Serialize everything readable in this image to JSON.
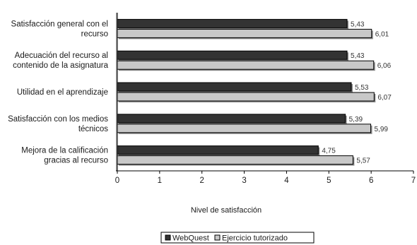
{
  "chart_data": {
    "type": "bar",
    "orientation": "horizontal",
    "categories": [
      [
        "Satisfacción general con el",
        "recurso"
      ],
      [
        "Adecuación del recurso al",
        "contenido de la asignatura"
      ],
      [
        "Utilidad en el aprendizaje"
      ],
      [
        "Satisfacción con los medios",
        "técnicos"
      ],
      [
        "Mejora de la calificación",
        "gracias al recurso"
      ]
    ],
    "series": [
      {
        "name": "WebQuest",
        "values": [
          5.43,
          5.43,
          5.53,
          5.39,
          4.75
        ],
        "labels": [
          "5,43",
          "5,43",
          "5,53",
          "5,39",
          "4,75"
        ],
        "color": "#333333"
      },
      {
        "name": "Ejercicio tutorizado",
        "values": [
          6.01,
          6.06,
          6.07,
          5.99,
          5.57
        ],
        "labels": [
          "6,01",
          "6,06",
          "6,07",
          "5,99",
          "5,57"
        ],
        "color": "#c8c8c8"
      }
    ],
    "xlabel": "Nivel de satisfacción",
    "xlim": [
      0,
      7
    ],
    "xticks": [
      "0",
      "1",
      "2",
      "3",
      "4",
      "5",
      "6",
      "7"
    ],
    "legend_position": "bottom"
  }
}
